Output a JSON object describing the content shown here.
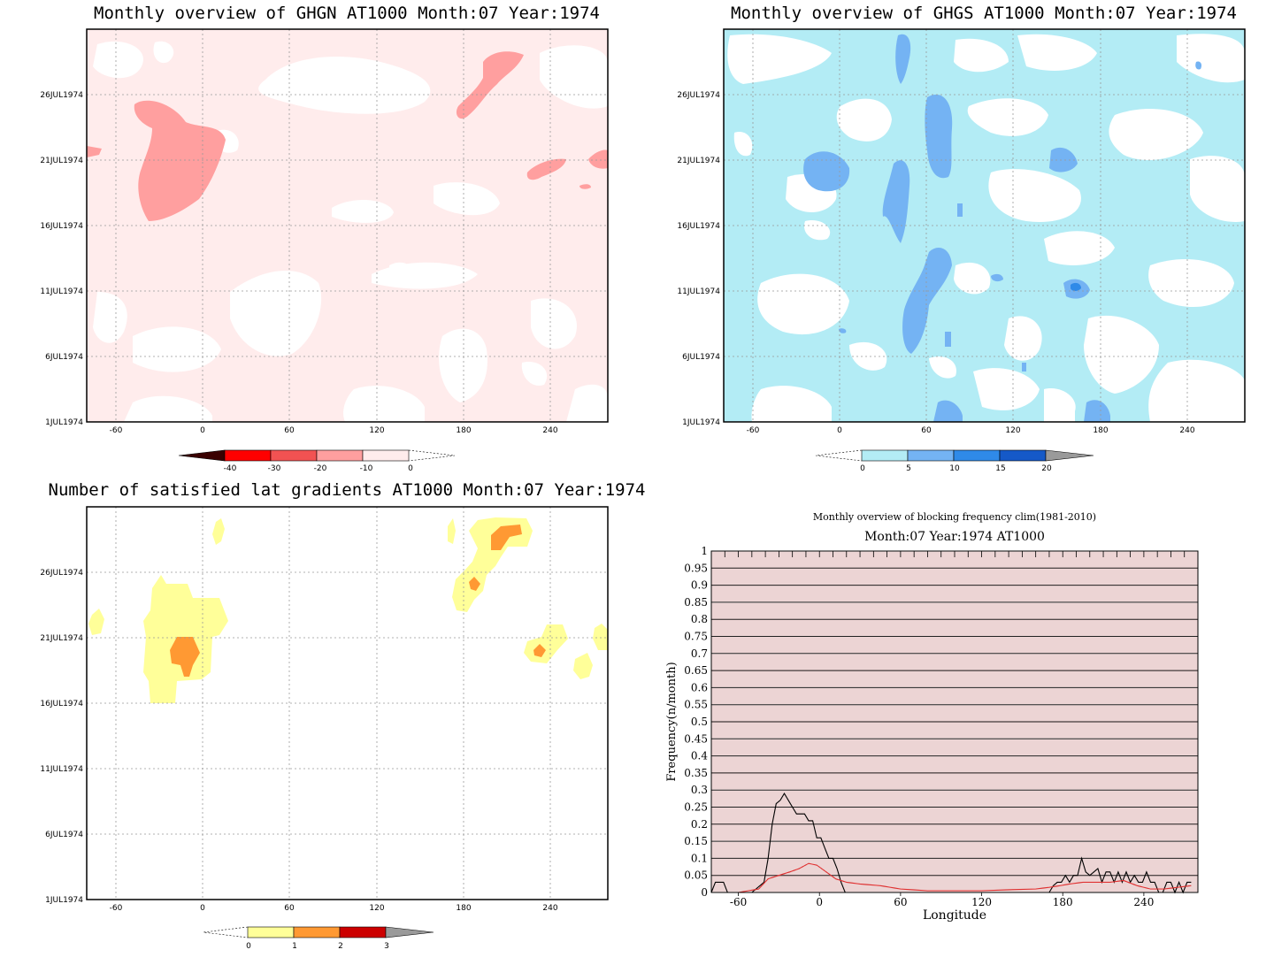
{
  "colors": {
    "ghgn": [
      "#3a0000",
      "#ff0000",
      "#f25252",
      "#ff9f9f",
      "#ffecec"
    ],
    "ghgs": [
      "#b3ecf5",
      "#74b3f3",
      "#2f8ae8",
      "#1559c8",
      "#9a9a9a"
    ],
    "sat": [
      "#ffff99",
      "#ff9933",
      "#cc0000",
      "#9a9a9a"
    ],
    "blocking_bg": "#f4e4e4",
    "blocking_lines": "#b87070"
  },
  "panels": [
    {
      "id": "ghgn",
      "title": "Monthly overview of GHGN AT1000 Month:07 Year:1974",
      "y_ticks": [
        "26JUL1974",
        "21JUL1974",
        "16JUL1974",
        "11JUL1974",
        "6JUL1974",
        "1JUL1974"
      ],
      "x_ticks": [
        "-60",
        "0",
        "60",
        "120",
        "180",
        "240"
      ],
      "colorbar": [
        "-40",
        "-30",
        "-20",
        "-10",
        "0"
      ]
    },
    {
      "id": "ghgs",
      "title": "Monthly overview of GHGS AT1000 Month:07 Year:1974",
      "y_ticks": [
        "26JUL1974",
        "21JUL1974",
        "16JUL1974",
        "11JUL1974",
        "6JUL1974",
        "1JUL1974"
      ],
      "x_ticks": [
        "-60",
        "0",
        "60",
        "120",
        "180",
        "240"
      ],
      "colorbar": [
        "0",
        "5",
        "10",
        "15",
        "20"
      ]
    },
    {
      "id": "sat",
      "title": "Number of satisfied lat gradients AT1000 Month:07 Year:1974",
      "y_ticks": [
        "26JUL1974",
        "21JUL1974",
        "16JUL1974",
        "11JUL1974",
        "6JUL1974",
        "1JUL1974"
      ],
      "x_ticks": [
        "-60",
        "0",
        "60",
        "120",
        "180",
        "240"
      ],
      "colorbar": [
        "0",
        "1",
        "2",
        "3"
      ]
    }
  ],
  "chart_data": {
    "type": "line",
    "title": "Monthly overview of blocking frequency clim(1981-2010)",
    "subtitle": "Month:07 Year:1974  AT1000",
    "xlabel": "Longitude",
    "ylabel": "Frequency(n/month)",
    "xlim": [
      -80,
      280
    ],
    "ylim": [
      0,
      1
    ],
    "x_ticks": [
      -60,
      0,
      60,
      120,
      180,
      240
    ],
    "y_ticks": [
      "0",
      "0.05",
      "0.1",
      "0.15",
      "0.2",
      "0.25",
      "0.3",
      "0.35",
      "0.4",
      "0.45",
      "0.5",
      "0.55",
      "0.6",
      "0.65",
      "0.7",
      "0.75",
      "0.8",
      "0.85",
      "0.9",
      "0.95",
      "1"
    ],
    "series": [
      {
        "color": "#000000",
        "x": [
          -80,
          -77,
          -74,
          -71,
          -68,
          -65,
          -62,
          -50,
          -41,
          -38,
          -35,
          -32,
          -29,
          -26,
          -23,
          -20,
          -17,
          -14,
          -11,
          -8,
          -5,
          -2,
          1,
          4,
          7,
          10,
          13,
          16,
          19,
          22,
          170,
          173,
          176,
          179,
          182,
          185,
          188,
          191,
          194,
          197,
          200,
          203,
          206,
          209,
          212,
          215,
          218,
          221,
          224,
          227,
          230,
          233,
          236,
          239,
          242,
          245,
          248,
          251,
          254,
          257,
          260,
          263,
          266,
          269,
          272,
          275
        ],
        "y": [
          0,
          0.03,
          0.03,
          0.03,
          0.0,
          0.0,
          0.0,
          0.0,
          0.03,
          0.1,
          0.2,
          0.26,
          0.27,
          0.29,
          0.27,
          0.25,
          0.23,
          0.23,
          0.23,
          0.21,
          0.21,
          0.16,
          0.16,
          0.13,
          0.1,
          0.1,
          0.07,
          0.03,
          0.0,
          0.0,
          0.0,
          0.02,
          0.03,
          0.03,
          0.05,
          0.03,
          0.05,
          0.05,
          0.1,
          0.06,
          0.05,
          0.06,
          0.07,
          0.03,
          0.06,
          0.06,
          0.03,
          0.06,
          0.03,
          0.06,
          0.03,
          0.05,
          0.03,
          0.03,
          0.06,
          0.03,
          0.03,
          0.0,
          0.0,
          0.03,
          0.03,
          0.0,
          0.03,
          0.0,
          0.03,
          0.03
        ]
      },
      {
        "color": "#e03030",
        "x": [
          -80,
          -60,
          -45,
          -38,
          -30,
          -22,
          -15,
          -8,
          -2,
          5,
          12,
          20,
          30,
          45,
          60,
          80,
          100,
          120,
          140,
          160,
          170,
          178,
          185,
          195,
          205,
          215,
          225,
          235,
          245,
          255,
          265,
          275
        ],
        "y": [
          0.0,
          0.0,
          0.01,
          0.04,
          0.05,
          0.06,
          0.07,
          0.085,
          0.08,
          0.06,
          0.04,
          0.03,
          0.025,
          0.02,
          0.01,
          0.005,
          0.005,
          0.005,
          0.008,
          0.01,
          0.015,
          0.02,
          0.025,
          0.03,
          0.03,
          0.03,
          0.035,
          0.02,
          0.01,
          0.01,
          0.015,
          0.02
        ]
      }
    ]
  }
}
